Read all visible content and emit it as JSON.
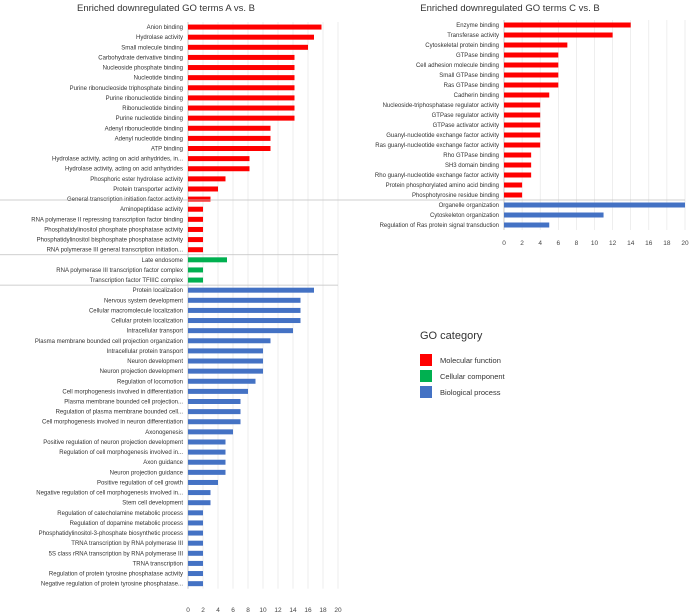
{
  "chart_data": [
    {
      "type": "bar",
      "orientation": "horizontal",
      "title": "Enriched downregulated GO terms A vs. B",
      "xlim": [
        0,
        20
      ],
      "xticks": [
        "0",
        "2",
        "4",
        "6",
        "8",
        "10",
        "12",
        "14",
        "16",
        "18",
        "20"
      ],
      "groups": [
        {
          "category": "Molecular function",
          "terms": [
            {
              "label": "Anion binding",
              "value": 17.8
            },
            {
              "label": "Hydrolase activity",
              "value": 16.8
            },
            {
              "label": "Small molecule binding",
              "value": 16
            },
            {
              "label": "Carbohydrate derivative binding",
              "value": 14.2
            },
            {
              "label": "Nucleoside phosphate binding",
              "value": 14.2
            },
            {
              "label": "Nucleotide binding",
              "value": 14.2
            },
            {
              "label": "Purine ribonucleoside triphosphate binding",
              "value": 14.2
            },
            {
              "label": "Purine ribonucleotide binding",
              "value": 14.2
            },
            {
              "label": "Ribonucleotide binding",
              "value": 14.2
            },
            {
              "label": "Purine nucleotide binding",
              "value": 14.2
            },
            {
              "label": "Adenyl ribonucleotide binding",
              "value": 11
            },
            {
              "label": "Adenyl nucleotide binding",
              "value": 11
            },
            {
              "label": "ATP binding",
              "value": 11
            },
            {
              "label": "Hydrolase activity, acting on acid anhydrides, in...",
              "value": 8.2
            },
            {
              "label": "Hydrolase activity, acting on acid anhydrides",
              "value": 8.2
            },
            {
              "label": "Phosphoric ester hydrolase activity",
              "value": 5
            },
            {
              "label": "Protein transporter activity",
              "value": 4
            },
            {
              "label": "General transcription initiation factor activity",
              "value": 3
            },
            {
              "label": "Aminopeptidase activity",
              "value": 2
            },
            {
              "label": "RNA polymerase II repressing transcription factor binding",
              "value": 2
            },
            {
              "label": "Phosphatidylinositol phosphate phosphatase activity",
              "value": 2
            },
            {
              "label": "Phosphatidylinositol bisphosphate phosphatase activity",
              "value": 2
            },
            {
              "label": "RNA polymerase III general transcription initiation...",
              "value": 2
            }
          ]
        },
        {
          "category": "Cellular component",
          "terms": [
            {
              "label": "Late endosome",
              "value": 5.2
            },
            {
              "label": "RNA polymerase III transcription factor complex",
              "value": 2
            },
            {
              "label": "Transcription factor TFIIIC complex",
              "value": 2
            }
          ]
        },
        {
          "category": "Biological process",
          "terms": [
            {
              "label": "Protein localization",
              "value": 16.8
            },
            {
              "label": "Nervous system development",
              "value": 15
            },
            {
              "label": "Cellular macromolecule localization",
              "value": 15
            },
            {
              "label": "Cellular protein localization",
              "value": 15
            },
            {
              "label": "Intracellular transport",
              "value": 14
            },
            {
              "label": "Plasma membrane bounded cell projection organization",
              "value": 11
            },
            {
              "label": "Intracellular protein transport",
              "value": 10
            },
            {
              "label": "Neuron development",
              "value": 10
            },
            {
              "label": "Neuron projection development",
              "value": 10
            },
            {
              "label": "Regulation of locomotion",
              "value": 9
            },
            {
              "label": "Cell morphogenesis involved in differentiation",
              "value": 8
            },
            {
              "label": "Plasma membrane bounded cell projection...",
              "value": 7
            },
            {
              "label": "Regulation of plasma membrane bounded cell...",
              "value": 7
            },
            {
              "label": "Cell morphogenesis involved in neuron differentiation",
              "value": 7
            },
            {
              "label": "Axonogenesis",
              "value": 6
            },
            {
              "label": "Positive regulation of neuron projection development",
              "value": 5
            },
            {
              "label": "Regulation of cell morphogenesis involved in...",
              "value": 5
            },
            {
              "label": "Axon guidance",
              "value": 5
            },
            {
              "label": "Neuron projection guidance",
              "value": 5
            },
            {
              "label": "Positive regulation of cell growth",
              "value": 4
            },
            {
              "label": "Negative regulation of cell morphogenesis involved in...",
              "value": 3
            },
            {
              "label": "Stem cell development",
              "value": 3
            },
            {
              "label": "Regulation of catecholamine metabolic process",
              "value": 2
            },
            {
              "label": "Regulation of dopamine metabolic process",
              "value": 2
            },
            {
              "label": "Phosphatidylinositol-3-phosphate biosynthetic process",
              "value": 2
            },
            {
              "label": "TRNA transcription by RNA polymerase III",
              "value": 2
            },
            {
              "label": "5S class rRNA transcription by RNA polymerase III",
              "value": 2
            },
            {
              "label": "TRNA transcription",
              "value": 2
            },
            {
              "label": "Regulation of protein tyrosine phosphatase activity",
              "value": 2
            },
            {
              "label": "Negative regulation of protein tyrosine phosphatase...",
              "value": 2
            }
          ]
        }
      ]
    },
    {
      "type": "bar",
      "orientation": "horizontal",
      "title": "Enriched downregulated GO terms C vs. B",
      "xlim": [
        0,
        20
      ],
      "xticks": [
        "0",
        "2",
        "4",
        "6",
        "8",
        "10",
        "12",
        "14",
        "16",
        "18",
        "20"
      ],
      "groups": [
        {
          "category": "Molecular function",
          "terms": [
            {
              "label": "Enzyme binding",
              "value": 14
            },
            {
              "label": "Transferase activity",
              "value": 12
            },
            {
              "label": "Cytoskeletal protein binding",
              "value": 7
            },
            {
              "label": "GTPase binding",
              "value": 6
            },
            {
              "label": "Cell adhesion molecule binding",
              "value": 6
            },
            {
              "label": "Small GTPase binding",
              "value": 6
            },
            {
              "label": "Ras GTPase binding",
              "value": 6
            },
            {
              "label": "Cadherin binding",
              "value": 5
            },
            {
              "label": "Nucleoside-triphosphatase regulator activity",
              "value": 4
            },
            {
              "label": "GTPase regulator activity",
              "value": 4
            },
            {
              "label": "GTPase activator activity",
              "value": 4
            },
            {
              "label": "Guanyl-nucleotide exchange factor activity",
              "value": 4
            },
            {
              "label": "Ras guanyl-nucleotide exchange factor activity",
              "value": 4
            },
            {
              "label": "Rho GTPase binding",
              "value": 3
            },
            {
              "label": "SH3 domain binding",
              "value": 3
            },
            {
              "label": "Rho guanyl-nucleotide exchange factor activity",
              "value": 3
            },
            {
              "label": "Protein phosphorylated amino acid binding",
              "value": 2
            },
            {
              "label": "Phosphotyrosine residue binding",
              "value": 2
            }
          ]
        },
        {
          "category": "Biological process",
          "terms": [
            {
              "label": "Organelle organization",
              "value": 20
            },
            {
              "label": "Cytoskeleton organization",
              "value": 11
            },
            {
              "label": "Regulation of Ras protein signal transduction",
              "value": 5
            }
          ]
        }
      ]
    }
  ],
  "legend": {
    "title": "GO category",
    "items": [
      {
        "label": "Molecular function",
        "color": "#ff0000"
      },
      {
        "label": "Cellular component",
        "color": "#00b050"
      },
      {
        "label": "Biological process",
        "color": "#4472c4"
      }
    ]
  }
}
